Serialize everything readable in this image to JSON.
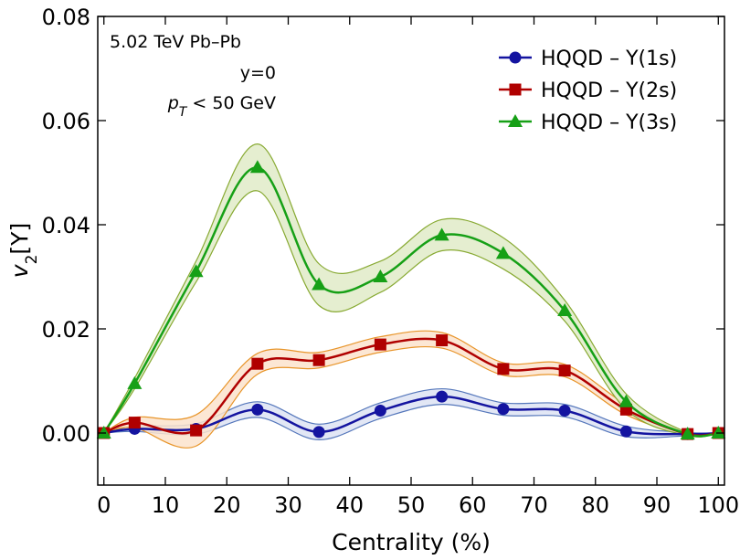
{
  "chart_data": {
    "type": "line",
    "xlabel": "Centrality (%)",
    "ylabel": "v",
    "ylabel_sub": "2",
    "ylabel_rest": "[Υ]",
    "annotations": [
      "5.02 TeV Pb–Pb",
      "y=0"
    ],
    "annotation_pt": "p",
    "annotation_pt_sub": "T",
    "annotation_pt_rest": " < 50 GeV",
    "x": [
      0,
      5,
      15,
      25,
      35,
      45,
      55,
      65,
      75,
      85,
      95,
      100
    ],
    "series": [
      {
        "name": "HQQD – Υ(1s)",
        "color": "#1414a0",
        "marker": "circle",
        "band_color": "#dde3f3",
        "band_edge": "#5577bb",
        "values": [
          0,
          0.0008,
          0.0008,
          0.0045,
          0.0002,
          0.0043,
          0.007,
          0.0046,
          0.0043,
          0.0003,
          -0.0002,
          0
        ],
        "errors": [
          0,
          0.0005,
          0.001,
          0.0015,
          0.0015,
          0.0015,
          0.0015,
          0.0012,
          0.0012,
          0.001,
          0.0003,
          0
        ]
      },
      {
        "name": "HQQD – Υ(2s)",
        "color": "#b00000",
        "marker": "square",
        "band_color": "#fbe3cc",
        "band_edge": "#e8952a",
        "values": [
          0,
          0.002,
          0.0005,
          0.0133,
          0.014,
          0.017,
          0.0178,
          0.0123,
          0.012,
          0.0045,
          -0.0002,
          0
        ],
        "errors": [
          0,
          0.001,
          0.003,
          0.002,
          0.0015,
          0.0015,
          0.0015,
          0.0012,
          0.0012,
          0.001,
          0.0003,
          0
        ]
      },
      {
        "name": "HQQD – Υ(3s)",
        "color": "#16a016",
        "marker": "triangle",
        "band_color": "#e0ebc8",
        "band_edge": "#88aa33",
        "values": [
          0,
          0.0095,
          0.031,
          0.051,
          0.0285,
          0.03,
          0.038,
          0.0345,
          0.0235,
          0.006,
          -0.0002,
          0
        ],
        "errors": [
          0,
          0.001,
          0.002,
          0.0045,
          0.004,
          0.003,
          0.003,
          0.003,
          0.002,
          0.0015,
          0.0003,
          0
        ]
      }
    ],
    "xlim": [
      -1,
      101
    ],
    "xticks": [
      0,
      10,
      20,
      30,
      40,
      50,
      60,
      70,
      80,
      90,
      100
    ],
    "ylim": [
      -0.01,
      0.08
    ],
    "yticks": [
      {
        "value": 0,
        "label": "0.00"
      },
      {
        "value": 0.02,
        "label": "0.02"
      },
      {
        "value": 0.04,
        "label": "0.04"
      },
      {
        "value": 0.06,
        "label": "0.06"
      },
      {
        "value": 0.08,
        "label": "0.08"
      }
    ],
    "legend": "upper right"
  }
}
